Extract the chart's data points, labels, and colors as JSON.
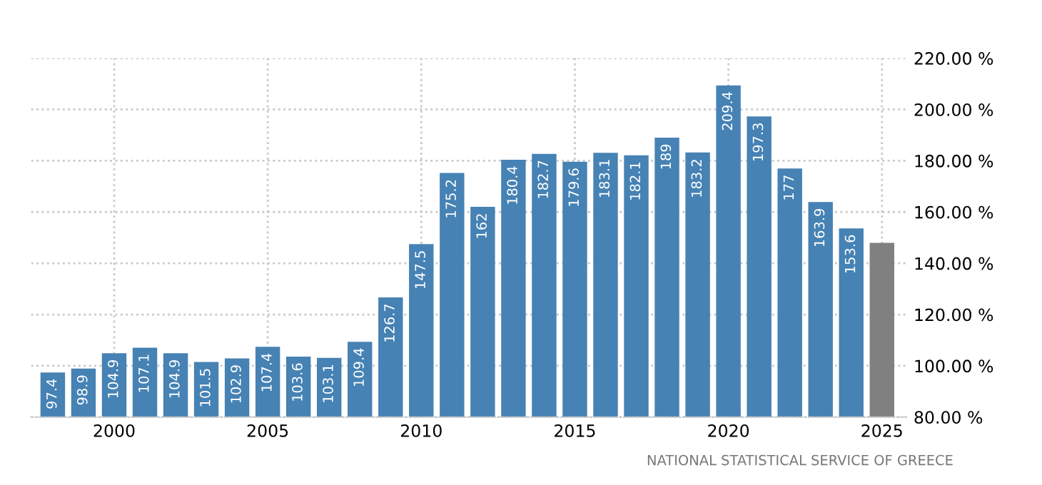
{
  "chart_data": {
    "type": "bar",
    "x": [
      1998,
      1999,
      2000,
      2001,
      2002,
      2003,
      2004,
      2005,
      2006,
      2007,
      2008,
      2009,
      2010,
      2011,
      2012,
      2013,
      2014,
      2015,
      2016,
      2017,
      2018,
      2019,
      2020,
      2021,
      2022,
      2023,
      2024,
      2025
    ],
    "values": [
      97.4,
      98.9,
      104.9,
      107.1,
      104.9,
      101.5,
      102.9,
      107.4,
      103.6,
      103.1,
      109.4,
      126.7,
      147.5,
      175.2,
      162,
      180.4,
      182.7,
      179.6,
      183.1,
      182.1,
      189,
      183.2,
      209.4,
      197.3,
      177,
      163.9,
      153.6,
      148
    ],
    "value_labels": [
      "97.4",
      "98.9",
      "104.9",
      "107.1",
      "104.9",
      "101.5",
      "102.9",
      "107.4",
      "103.6",
      "103.1",
      "109.4",
      "126.7",
      "147.5",
      "175.2",
      "162",
      "180.4",
      "182.7",
      "179.6",
      "183.1",
      "182.1",
      "189",
      "183.2",
      "209.4",
      "197.3",
      "177",
      "163.9",
      "153.6",
      null
    ],
    "colors": [
      "#4682b4",
      "#4682b4",
      "#4682b4",
      "#4682b4",
      "#4682b4",
      "#4682b4",
      "#4682b4",
      "#4682b4",
      "#4682b4",
      "#4682b4",
      "#4682b4",
      "#4682b4",
      "#4682b4",
      "#4682b4",
      "#4682b4",
      "#4682b4",
      "#4682b4",
      "#4682b4",
      "#4682b4",
      "#4682b4",
      "#4682b4",
      "#4682b4",
      "#4682b4",
      "#4682b4",
      "#4682b4",
      "#4682b4",
      "#4682b4",
      "#808080"
    ],
    "xlim": [
      1997.3,
      2025.8
    ],
    "xticks": [
      2000,
      2005,
      2010,
      2015,
      2020,
      2025
    ],
    "ylim": [
      80,
      220
    ],
    "yticks": [
      {
        "value": 80,
        "label": "80.00 %"
      },
      {
        "value": 100,
        "label": "100.00 %"
      },
      {
        "value": 120,
        "label": "120.00 %"
      },
      {
        "value": 140,
        "label": "140.00 %"
      },
      {
        "value": 160,
        "label": "160.00 %"
      },
      {
        "value": 180,
        "label": "180.00 %"
      },
      {
        "value": 200,
        "label": "200.00 %"
      },
      {
        "value": 220,
        "label": "220.00 %"
      }
    ],
    "grid": true,
    "annotations": [
      "NATIONAL STATISTICAL SERVICE OF GREECE"
    ]
  }
}
